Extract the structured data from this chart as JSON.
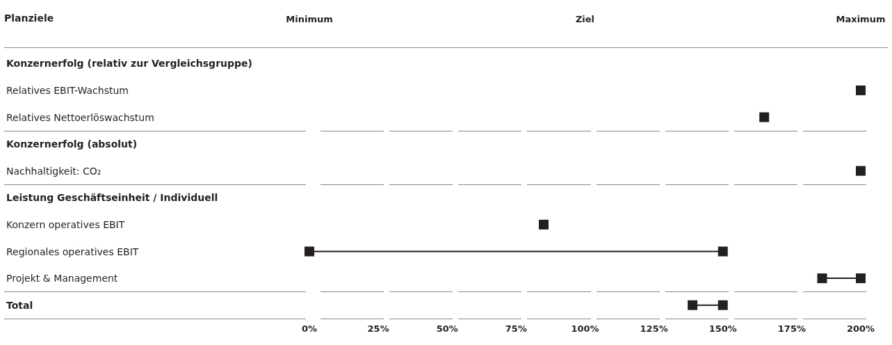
{
  "chart_data": {
    "type": "scatter",
    "orientation": "horizontal",
    "ylabel": "Planziele",
    "categories": [
      "Konzernerfolg (relativ zur Vergleichsgruppe)",
      "Relatives EBIT-Wachstum",
      "Relatives Nettoerlöswachstum",
      "Konzernerfolg (absolut)",
      "Nachhaltigkeit: CO₂",
      "Leistung Geschäftseinheit / Individuell",
      "Konzern operatives EBIT",
      "Regionales operatives EBIT",
      "Projekt & Management",
      "Total"
    ],
    "series": [
      {
        "type": "bar",
        "color": "#231f20",
        "base": [
          null,
          null,
          null,
          null,
          null,
          null,
          null,
          0,
          186,
          139
        ],
        "values": [
          null,
          null,
          null,
          null,
          null,
          null,
          null,
          150,
          14,
          11
        ]
      },
      {
        "color": "#231f20",
        "values": [
          null,
          200,
          165,
          null,
          200,
          null,
          85,
          0,
          186,
          139
        ]
      },
      {
        "color": "#231f20",
        "values": [
          null,
          null,
          null,
          null,
          null,
          null,
          null,
          150,
          200,
          150
        ]
      }
    ],
    "marker": "square",
    "xlim": [
      0,
      200
    ],
    "xticks": [
      {
        "value": 0,
        "label": "0%"
      },
      {
        "value": 25,
        "label": "25%"
      },
      {
        "value": 50,
        "label": "50%"
      },
      {
        "value": 75,
        "label": "75%"
      },
      {
        "value": 100,
        "label": "100%"
      },
      {
        "value": 125,
        "label": "125%"
      },
      {
        "value": 150,
        "label": "150%"
      },
      {
        "value": 175,
        "label": "175%"
      },
      {
        "value": 200,
        "label": "200%"
      }
    ],
    "annotations": [
      "Minimum",
      "Ziel",
      "Maximum"
    ],
    "grid": false
  }
}
